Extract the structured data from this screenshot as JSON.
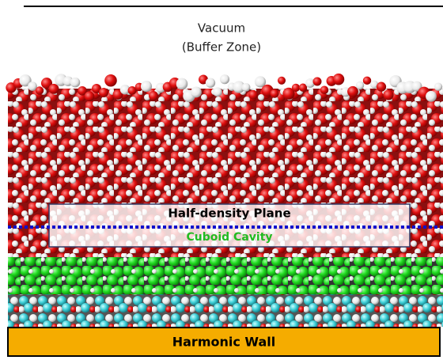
{
  "labels": {
    "vacuum": "Vacuum",
    "buffer_zone": "(Buffer Zone)",
    "half_density_plane": "Half-density Plane",
    "cuboid_cavity": "Cuboid Cavity",
    "harmonic_wall": "Harmonic Wall"
  }
}
